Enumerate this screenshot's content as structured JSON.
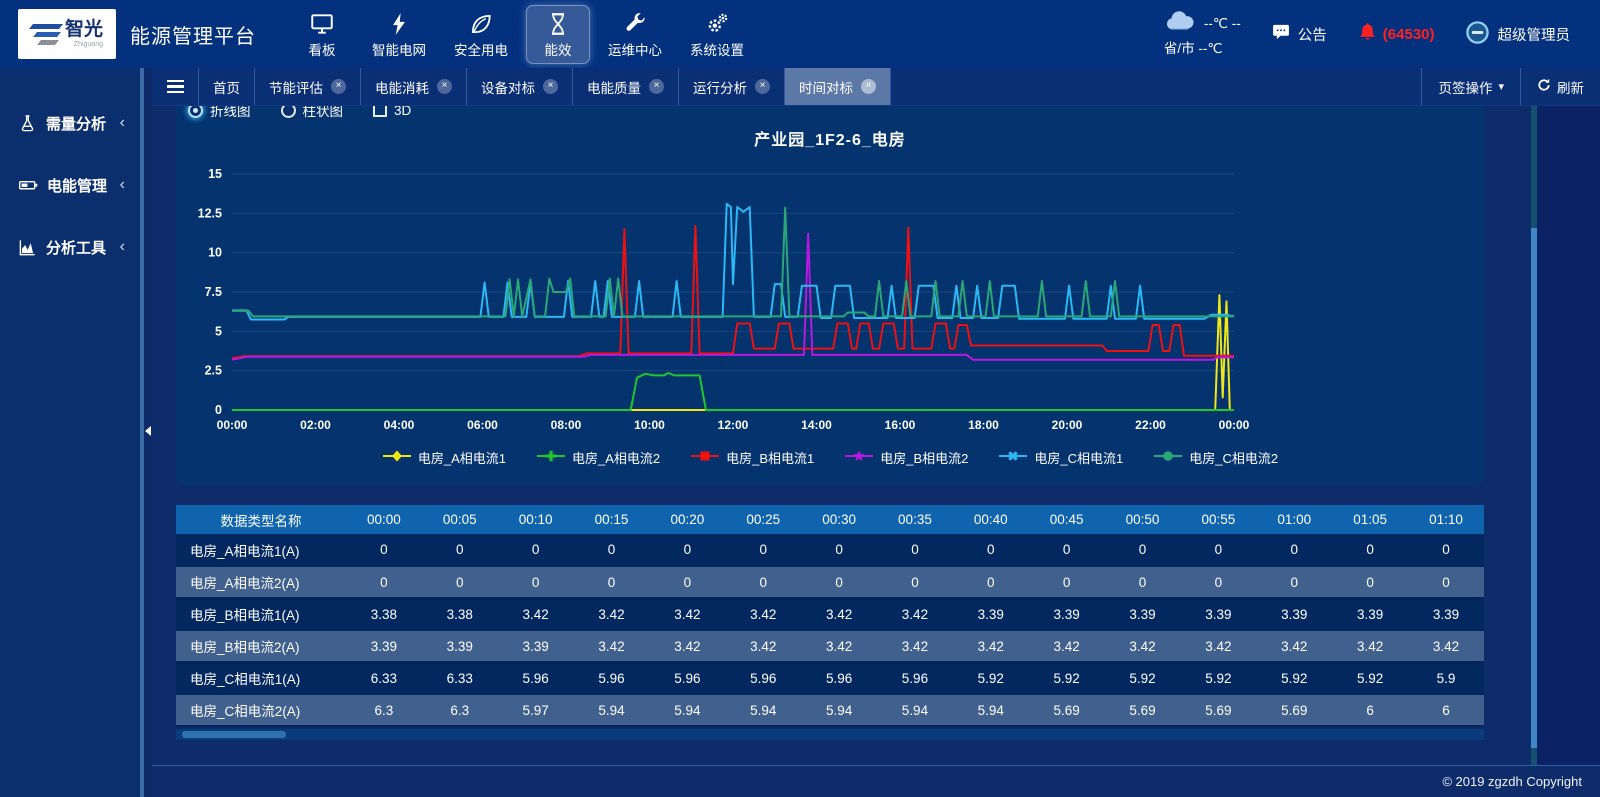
{
  "header": {
    "logo": {
      "brand": "智光",
      "brand_sub": "Zhiguang"
    },
    "app_title": "能源管理平台",
    "nav": [
      {
        "label": "看板",
        "icon": "monitor-icon",
        "active": false
      },
      {
        "label": "智能电网",
        "icon": "bolt-icon",
        "active": false
      },
      {
        "label": "安全用电",
        "icon": "leaf-icon",
        "active": false
      },
      {
        "label": "能效",
        "icon": "hourglass-icon",
        "active": true
      },
      {
        "label": "运维中心",
        "icon": "wrench-icon",
        "active": false
      },
      {
        "label": "系统设置",
        "icon": "gears-icon",
        "active": false
      }
    ],
    "weather": {
      "temp_line": "--℃ --",
      "city_line": "省/市 --℃"
    },
    "notice_label": "公告",
    "alarm_count": "(64530)",
    "alarm_color": "#ff2020",
    "user_label": "超级管理员"
  },
  "sidebar": {
    "items": [
      {
        "label": "需量分析",
        "icon": "flask-icon",
        "chevron": "‹"
      },
      {
        "label": "电能管理",
        "icon": "battery-icon",
        "chevron": "‹"
      },
      {
        "label": "分析工具",
        "icon": "chart-icon",
        "chevron": "‹"
      }
    ]
  },
  "tabbar": {
    "tabs": [
      {
        "label": "首页",
        "closable": false,
        "active": false
      },
      {
        "label": "节能评估",
        "closable": true,
        "active": false
      },
      {
        "label": "电能消耗",
        "closable": true,
        "active": false
      },
      {
        "label": "设备对标",
        "closable": true,
        "active": false
      },
      {
        "label": "电能质量",
        "closable": true,
        "active": false
      },
      {
        "label": "运行分析",
        "closable": true,
        "active": false
      },
      {
        "label": "时间对标",
        "closable": true,
        "active": true
      }
    ],
    "tab_ops_label": "页签操作",
    "refresh_label": "刷新"
  },
  "controls": {
    "radios": [
      {
        "label": "折线图",
        "checked": true
      },
      {
        "label": "柱状图",
        "checked": false
      }
    ],
    "checkbox": {
      "label": "3D",
      "checked": false
    }
  },
  "chart_data": {
    "type": "line",
    "title": "产业园_1F2-6_电房",
    "ylim": [
      0,
      15
    ],
    "y_ticks": [
      0,
      2.5,
      5,
      7.5,
      10,
      12.5,
      15
    ],
    "x_ticks": [
      "00:00",
      "02:00",
      "04:00",
      "06:00",
      "08:00",
      "10:00",
      "12:00",
      "14:00",
      "16:00",
      "18:00",
      "20:00",
      "22:00",
      "00:00"
    ],
    "x_range_hours": [
      0,
      24
    ],
    "grid": true,
    "legend_position": "bottom",
    "series": [
      {
        "name": "电房_A相电流1",
        "color": "#f2e713",
        "marker": "diamond",
        "points": [
          [
            0,
            0
          ],
          [
            23.55,
            0
          ],
          [
            23.65,
            7.3
          ],
          [
            23.73,
            0.8
          ],
          [
            23.82,
            6.9
          ],
          [
            23.9,
            0
          ],
          [
            24,
            0
          ]
        ]
      },
      {
        "name": "电房_A相电流2",
        "color": "#21c62b",
        "marker": "plus",
        "points": [
          [
            0,
            0
          ],
          [
            9.55,
            0
          ],
          [
            9.7,
            2.05
          ],
          [
            9.9,
            2.3
          ],
          [
            10.1,
            2.2
          ],
          [
            10.35,
            2.2
          ],
          [
            10.45,
            2.35
          ],
          [
            10.6,
            2.2
          ],
          [
            11.2,
            2.2
          ],
          [
            11.35,
            0
          ],
          [
            24,
            0
          ]
        ]
      },
      {
        "name": "电房_B相电流1",
        "color": "#ee1111",
        "marker": "square",
        "points": [
          [
            0,
            3.3
          ],
          [
            0.3,
            3.42
          ],
          [
            8.3,
            3.42
          ],
          [
            8.5,
            3.6
          ],
          [
            9.3,
            3.6
          ],
          [
            9.4,
            11.5
          ],
          [
            9.5,
            3.6
          ],
          [
            11.0,
            3.6
          ],
          [
            11.1,
            11.7
          ],
          [
            11.2,
            3.6
          ],
          [
            12.0,
            3.6
          ],
          [
            12.1,
            5.5
          ],
          [
            12.4,
            5.5
          ],
          [
            12.5,
            3.9
          ],
          [
            13.0,
            3.9
          ],
          [
            13.1,
            5.5
          ],
          [
            13.35,
            5.5
          ],
          [
            13.45,
            3.9
          ],
          [
            14.4,
            3.9
          ],
          [
            14.5,
            5.5
          ],
          [
            14.75,
            5.5
          ],
          [
            14.85,
            3.9
          ],
          [
            14.95,
            3.9
          ],
          [
            15.05,
            5.5
          ],
          [
            15.25,
            5.5
          ],
          [
            15.35,
            3.9
          ],
          [
            15.5,
            3.9
          ],
          [
            15.6,
            5.5
          ],
          [
            15.85,
            5.5
          ],
          [
            15.95,
            3.9
          ],
          [
            16.1,
            3.9
          ],
          [
            16.2,
            11.6
          ],
          [
            16.3,
            3.9
          ],
          [
            16.75,
            3.9
          ],
          [
            16.85,
            5.5
          ],
          [
            17.1,
            5.5
          ],
          [
            17.2,
            3.9
          ],
          [
            17.3,
            3.9
          ],
          [
            17.4,
            5.4
          ],
          [
            17.6,
            5.4
          ],
          [
            17.7,
            4.1
          ],
          [
            20.85,
            4.1
          ],
          [
            20.95,
            3.75
          ],
          [
            21.95,
            3.75
          ],
          [
            22.05,
            5.4
          ],
          [
            22.2,
            5.4
          ],
          [
            22.3,
            3.75
          ],
          [
            22.45,
            3.75
          ],
          [
            22.55,
            5.4
          ],
          [
            22.7,
            5.4
          ],
          [
            22.8,
            3.45
          ],
          [
            23.3,
            3.45
          ],
          [
            24,
            3.45
          ]
        ]
      },
      {
        "name": "电房_B相电流2",
        "color": "#b818e0",
        "marker": "star",
        "points": [
          [
            0,
            3.2
          ],
          [
            0.35,
            3.38
          ],
          [
            8.4,
            3.38
          ],
          [
            8.6,
            3.5
          ],
          [
            13.7,
            3.5
          ],
          [
            13.8,
            11.2
          ],
          [
            13.9,
            3.5
          ],
          [
            17.6,
            3.5
          ],
          [
            17.75,
            3.2
          ],
          [
            23.5,
            3.2
          ],
          [
            23.6,
            3.35
          ],
          [
            24,
            3.35
          ]
        ]
      },
      {
        "name": "电房_C相电流1",
        "color": "#2cb8f5",
        "marker": "cross",
        "points": [
          [
            0,
            6.33
          ],
          [
            0.35,
            6.33
          ],
          [
            0.45,
            5.75
          ],
          [
            1.25,
            5.75
          ],
          [
            1.35,
            5.92
          ],
          [
            5.95,
            5.92
          ],
          [
            6.05,
            8.1
          ],
          [
            6.15,
            5.92
          ],
          [
            6.5,
            5.92
          ],
          [
            6.6,
            8.1
          ],
          [
            6.7,
            5.92
          ],
          [
            7.05,
            5.92
          ],
          [
            7.15,
            8.1
          ],
          [
            7.25,
            5.92
          ],
          [
            7.95,
            5.92
          ],
          [
            8.05,
            8.2
          ],
          [
            8.15,
            5.92
          ],
          [
            8.6,
            5.92
          ],
          [
            8.7,
            8.2
          ],
          [
            8.8,
            5.92
          ],
          [
            8.9,
            5.92
          ],
          [
            9.0,
            8.2
          ],
          [
            9.1,
            5.92
          ],
          [
            9.65,
            5.92
          ],
          [
            9.75,
            8.2
          ],
          [
            9.85,
            5.92
          ],
          [
            10.55,
            5.92
          ],
          [
            10.65,
            8.2
          ],
          [
            10.75,
            5.92
          ],
          [
            11.75,
            5.92
          ],
          [
            11.85,
            13.1
          ],
          [
            11.95,
            12.9
          ],
          [
            12.0,
            8.0
          ],
          [
            12.1,
            12.9
          ],
          [
            12.25,
            12.6
          ],
          [
            12.4,
            12.9
          ],
          [
            12.5,
            5.92
          ],
          [
            12.9,
            5.92
          ],
          [
            13.0,
            8.0
          ],
          [
            13.15,
            8.0
          ],
          [
            13.25,
            5.92
          ],
          [
            13.55,
            5.92
          ],
          [
            13.65,
            7.9
          ],
          [
            14.0,
            7.9
          ],
          [
            14.1,
            5.85
          ],
          [
            14.35,
            5.85
          ],
          [
            14.45,
            7.9
          ],
          [
            14.8,
            7.9
          ],
          [
            14.9,
            5.85
          ],
          [
            15.7,
            5.85
          ],
          [
            15.8,
            7.9
          ],
          [
            15.9,
            5.85
          ],
          [
            16.35,
            5.85
          ],
          [
            16.45,
            7.9
          ],
          [
            16.8,
            7.9
          ],
          [
            16.9,
            5.85
          ],
          [
            17.25,
            5.85
          ],
          [
            17.35,
            7.9
          ],
          [
            17.45,
            5.85
          ],
          [
            17.75,
            5.85
          ],
          [
            17.85,
            7.9
          ],
          [
            17.95,
            5.85
          ],
          [
            18.35,
            5.85
          ],
          [
            18.45,
            7.9
          ],
          [
            18.75,
            7.9
          ],
          [
            18.85,
            5.8
          ],
          [
            19.95,
            5.8
          ],
          [
            20.05,
            7.9
          ],
          [
            20.15,
            5.8
          ],
          [
            20.95,
            5.8
          ],
          [
            21.05,
            7.9
          ],
          [
            21.15,
            5.8
          ],
          [
            21.65,
            5.8
          ],
          [
            21.75,
            7.9
          ],
          [
            21.85,
            5.8
          ],
          [
            23.3,
            5.8
          ],
          [
            23.45,
            6.05
          ],
          [
            23.85,
            6.05
          ],
          [
            23.95,
            5.95
          ],
          [
            24,
            6.0
          ]
        ]
      },
      {
        "name": "电房_C相电流2",
        "color": "#2aa678",
        "marker": "circle",
        "points": [
          [
            0,
            6.3
          ],
          [
            0.4,
            6.3
          ],
          [
            0.5,
            5.95
          ],
          [
            6.55,
            5.95
          ],
          [
            6.65,
            8.3
          ],
          [
            6.75,
            5.95
          ],
          [
            6.85,
            8.3
          ],
          [
            6.95,
            5.95
          ],
          [
            7.15,
            8.3
          ],
          [
            7.25,
            5.95
          ],
          [
            7.5,
            5.95
          ],
          [
            7.6,
            8.35
          ],
          [
            7.7,
            7.5
          ],
          [
            8.0,
            7.5
          ],
          [
            8.1,
            8.35
          ],
          [
            8.2,
            5.95
          ],
          [
            8.95,
            5.95
          ],
          [
            9.05,
            8.35
          ],
          [
            9.15,
            5.95
          ],
          [
            9.25,
            8.35
          ],
          [
            9.35,
            5.95
          ],
          [
            13.15,
            5.95
          ],
          [
            13.25,
            12.85
          ],
          [
            13.35,
            5.95
          ],
          [
            14.65,
            5.95
          ],
          [
            14.75,
            6.2
          ],
          [
            15.15,
            6.2
          ],
          [
            15.25,
            5.95
          ],
          [
            15.4,
            5.95
          ],
          [
            15.5,
            8.2
          ],
          [
            15.6,
            5.95
          ],
          [
            16.05,
            5.95
          ],
          [
            16.15,
            8.2
          ],
          [
            16.25,
            5.95
          ],
          [
            16.75,
            5.95
          ],
          [
            16.85,
            8.2
          ],
          [
            16.95,
            5.95
          ],
          [
            17.4,
            5.95
          ],
          [
            17.5,
            8.2
          ],
          [
            17.6,
            5.95
          ],
          [
            18.05,
            5.95
          ],
          [
            18.15,
            8.2
          ],
          [
            18.25,
            5.95
          ],
          [
            19.3,
            5.95
          ],
          [
            19.4,
            8.2
          ],
          [
            19.5,
            5.95
          ],
          [
            20.35,
            5.95
          ],
          [
            20.45,
            8.2
          ],
          [
            20.55,
            5.95
          ],
          [
            21.05,
            5.95
          ],
          [
            21.15,
            8.2
          ],
          [
            21.25,
            5.95
          ],
          [
            24,
            5.95
          ]
        ]
      }
    ]
  },
  "table": {
    "headers": [
      "数据类型名称",
      "00:00",
      "00:05",
      "00:10",
      "00:15",
      "00:20",
      "00:25",
      "00:30",
      "00:35",
      "00:40",
      "00:45",
      "00:50",
      "00:55",
      "01:00",
      "01:05",
      "01:10"
    ],
    "rows": [
      {
        "name": "电房_A相电流1(A)",
        "values": [
          "0",
          "0",
          "0",
          "0",
          "0",
          "0",
          "0",
          "0",
          "0",
          "0",
          "0",
          "0",
          "0",
          "0",
          "0"
        ]
      },
      {
        "name": "电房_A相电流2(A)",
        "values": [
          "0",
          "0",
          "0",
          "0",
          "0",
          "0",
          "0",
          "0",
          "0",
          "0",
          "0",
          "0",
          "0",
          "0",
          "0"
        ]
      },
      {
        "name": "电房_B相电流1(A)",
        "values": [
          "3.38",
          "3.38",
          "3.42",
          "3.42",
          "3.42",
          "3.42",
          "3.42",
          "3.42",
          "3.39",
          "3.39",
          "3.39",
          "3.39",
          "3.39",
          "3.39",
          "3.39"
        ]
      },
      {
        "name": "电房_B相电流2(A)",
        "values": [
          "3.39",
          "3.39",
          "3.39",
          "3.42",
          "3.42",
          "3.42",
          "3.42",
          "3.42",
          "3.42",
          "3.42",
          "3.42",
          "3.42",
          "3.42",
          "3.42",
          "3.42"
        ]
      },
      {
        "name": "电房_C相电流1(A)",
        "values": [
          "6.33",
          "6.33",
          "5.96",
          "5.96",
          "5.96",
          "5.96",
          "5.96",
          "5.96",
          "5.92",
          "5.92",
          "5.92",
          "5.92",
          "5.92",
          "5.92",
          "5.9"
        ]
      },
      {
        "name": "电房_C相电流2(A)",
        "values": [
          "6.3",
          "6.3",
          "5.97",
          "5.94",
          "5.94",
          "5.94",
          "5.94",
          "5.94",
          "5.94",
          "5.69",
          "5.69",
          "5.69",
          "5.69",
          "6",
          "6"
        ]
      }
    ]
  },
  "footer": {
    "copyright": "© 2019 zgzdh Copyright"
  }
}
